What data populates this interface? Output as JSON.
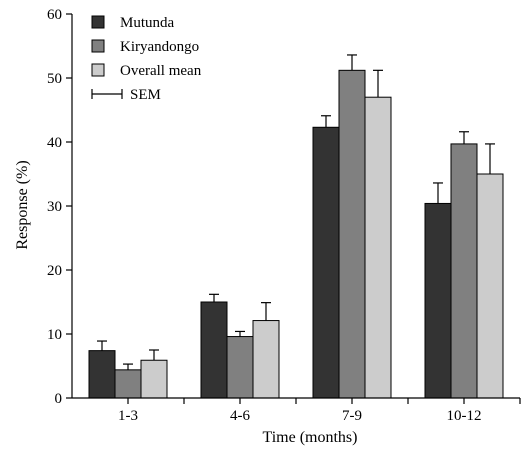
{
  "chart_data": {
    "type": "bar",
    "xlabel": "Time (months)",
    "ylabel": "Response (%)",
    "ylim": [
      0,
      60
    ],
    "yticks": [
      0,
      10,
      20,
      30,
      40,
      50,
      60
    ],
    "ytick_labels": [
      "0",
      "10",
      "20",
      "30",
      "40",
      "50",
      "60"
    ],
    "categories": [
      "1-3",
      "4-6",
      "7-9",
      "10-12"
    ],
    "series": [
      {
        "name": "Mutunda",
        "color": "#333333",
        "values": [
          7.4,
          15.0,
          42.3,
          30.4
        ],
        "sem": [
          1.5,
          1.2,
          1.8,
          3.2
        ]
      },
      {
        "name": "Kiryandongo",
        "color": "#808080",
        "values": [
          4.4,
          9.6,
          51.2,
          39.7
        ],
        "sem": [
          0.9,
          0.8,
          2.4,
          1.9
        ]
      },
      {
        "name": "Overall mean",
        "color": "#cccccc",
        "values": [
          5.9,
          12.1,
          47.0,
          35.0
        ],
        "sem": [
          1.6,
          2.8,
          4.2,
          4.7
        ]
      }
    ],
    "legend_sem_label": "SEM",
    "legend_position": "top-left",
    "grid": false
  }
}
